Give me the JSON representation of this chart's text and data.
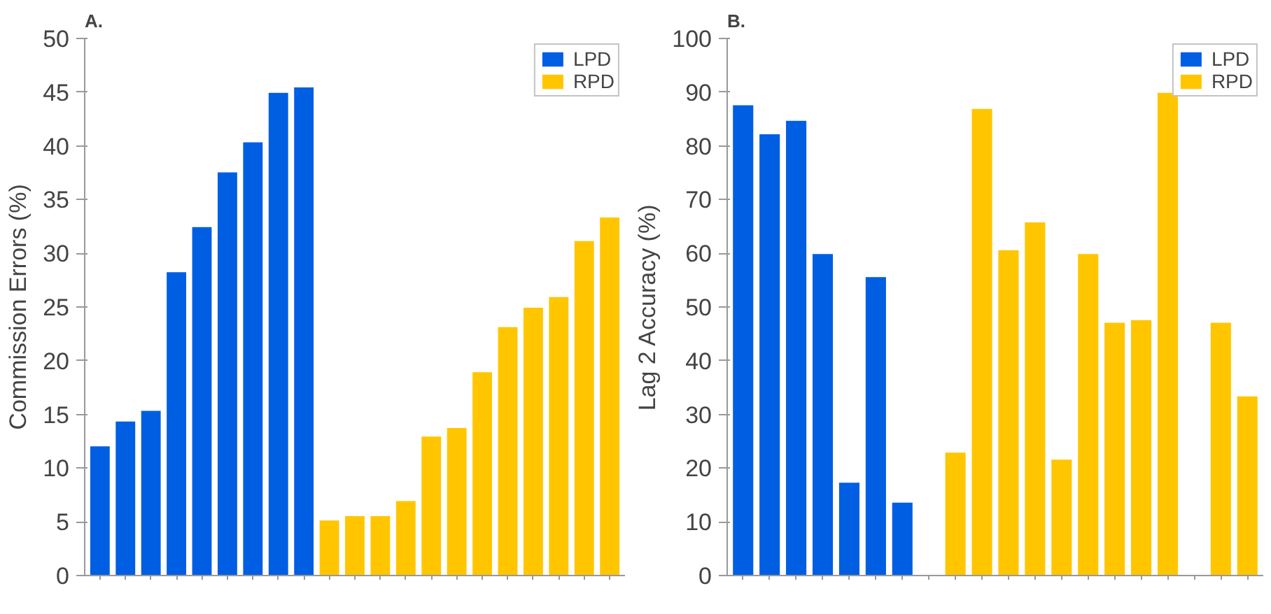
{
  "chart_data": [
    {
      "type": "bar",
      "title": "A.",
      "ylabel": "Commission Errors (%)",
      "categories": [
        null,
        null,
        null,
        null,
        null,
        null,
        null,
        null,
        null,
        null,
        null,
        null,
        null,
        null,
        null,
        null,
        null,
        null,
        null,
        null,
        null
      ],
      "series": [
        {
          "name": "LPD",
          "color": "#005ee3",
          "values": [
            12.1,
            14.4,
            15.4,
            28.3,
            32.5,
            37.6,
            40.4,
            45.0,
            45.5,
            null,
            null,
            null,
            null,
            null,
            null,
            null,
            null,
            null,
            null,
            null,
            null
          ]
        },
        {
          "name": "RPD",
          "color": "#ffc600",
          "values": [
            null,
            null,
            null,
            null,
            null,
            null,
            null,
            null,
            null,
            5.2,
            5.6,
            5.6,
            7.0,
            13.0,
            13.8,
            19.0,
            23.2,
            25.0,
            26.0,
            31.2,
            33.4
          ]
        }
      ],
      "ylim": [
        0,
        50
      ],
      "yticks": [
        0,
        5,
        10,
        15,
        20,
        25,
        30,
        35,
        40,
        45,
        50
      ],
      "grid": false,
      "legend": "top right",
      "tick_labels": "y"
    },
    {
      "type": "bar",
      "title": "B.",
      "ylabel": "Lag 2 Accuracy (%)",
      "categories": [
        null,
        null,
        null,
        null,
        null,
        null,
        null,
        null,
        null,
        null,
        null,
        null,
        null,
        null,
        null,
        null,
        null,
        null,
        null,
        null
      ],
      "series": [
        {
          "name": "LPD",
          "color": "#005ee3",
          "values": [
            87.7,
            82.3,
            84.8,
            60.0,
            17.4,
            55.7,
            13.7,
            null,
            null,
            null,
            null,
            null,
            null,
            null,
            null,
            null,
            null,
            null,
            null,
            null
          ]
        },
        {
          "name": "RPD",
          "color": "#ffc600",
          "values": [
            null,
            null,
            null,
            null,
            null,
            null,
            null,
            null,
            23.0,
            87.0,
            60.7,
            65.9,
            21.7,
            60.0,
            47.2,
            47.7,
            90.0,
            null,
            47.2,
            33.5
          ]
        }
      ],
      "ylim": [
        0,
        100
      ],
      "yticks": [
        0,
        10,
        20,
        30,
        40,
        50,
        60,
        70,
        80,
        90,
        100
      ],
      "grid": false,
      "legend": "top right",
      "tick_labels": "y"
    }
  ]
}
